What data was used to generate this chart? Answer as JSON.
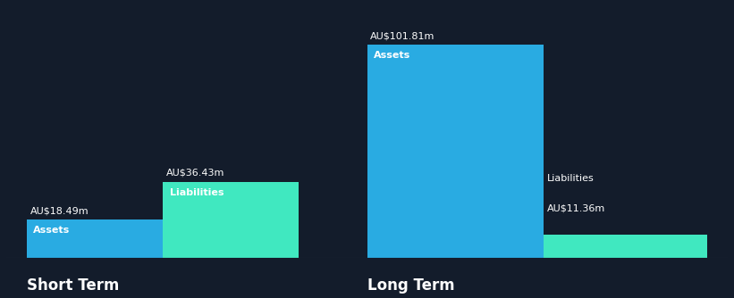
{
  "background_color": "#131c2b",
  "asset_color": "#29abe2",
  "liability_color": "#40e8c0",
  "text_color": "#ffffff",
  "short_term": {
    "assets": 18.49,
    "liabilities": 36.43
  },
  "long_term": {
    "assets": 101.81,
    "liabilities": 11.36
  },
  "group_labels": [
    "Short Term",
    "Long Term"
  ],
  "bar_labels": [
    "Assets",
    "Liabilities"
  ],
  "value_label_fontsize": 8.0,
  "bar_label_fontsize": 8.0,
  "group_label_fontsize": 12,
  "baseline_color": "#2a3a4a"
}
